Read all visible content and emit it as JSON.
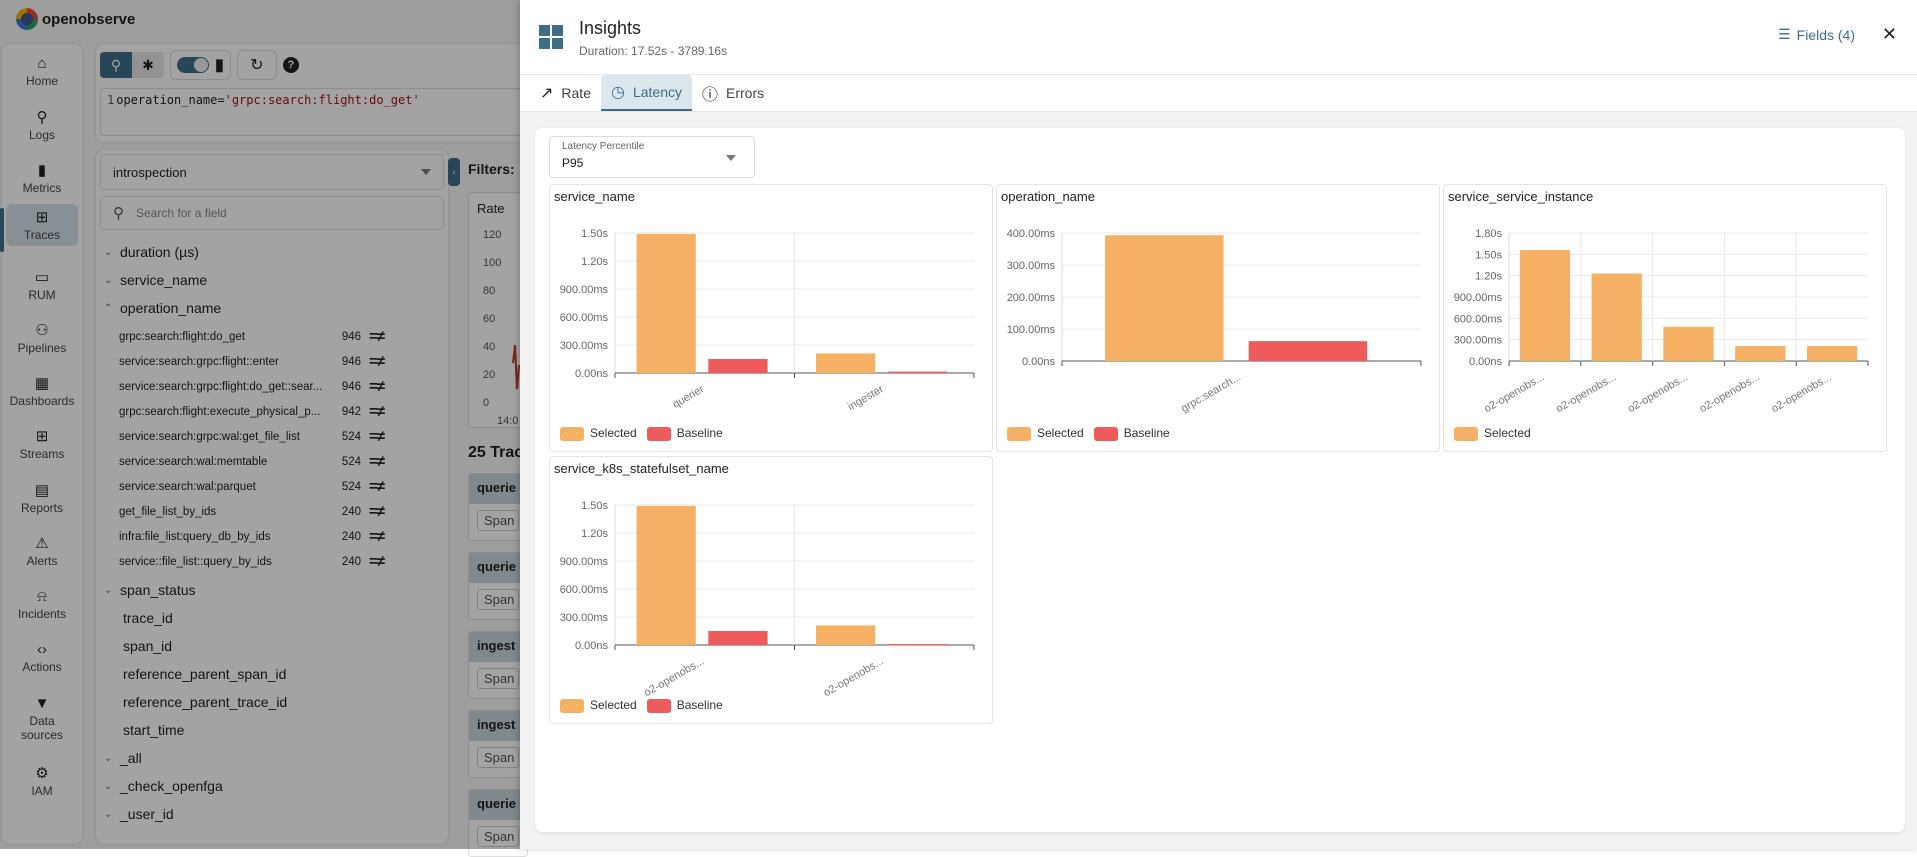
{
  "app": {
    "brand": "openobserve"
  },
  "nav": {
    "items": [
      {
        "label": "Home",
        "icon": "home-icon",
        "glyph": "⌂"
      },
      {
        "label": "Logs",
        "icon": "search-icon",
        "glyph": "⚲"
      },
      {
        "label": "Metrics",
        "icon": "bar-chart-icon",
        "glyph": "▮"
      },
      {
        "label": "Traces",
        "icon": "traces-icon",
        "glyph": "⊞",
        "active": true
      },
      {
        "label": "RUM",
        "icon": "devices-icon",
        "glyph": "▭"
      },
      {
        "label": "Pipelines",
        "icon": "pipeline-icon",
        "glyph": "⚇"
      },
      {
        "label": "Dashboards",
        "icon": "dashboard-icon",
        "glyph": "▦"
      },
      {
        "label": "Streams",
        "icon": "streams-icon",
        "glyph": "⊞"
      },
      {
        "label": "Reports",
        "icon": "report-icon",
        "glyph": "▤"
      },
      {
        "label": "Alerts",
        "icon": "alert-icon",
        "glyph": "⚠"
      },
      {
        "label": "Incidents",
        "icon": "bell-icon",
        "glyph": "⍾"
      },
      {
        "label": "Actions",
        "icon": "code-icon",
        "glyph": "‹›"
      },
      {
        "label": "Data sources",
        "icon": "filter-icon",
        "glyph": "▼"
      },
      {
        "label": "IAM",
        "icon": "user-gear-icon",
        "glyph": "⚙"
      }
    ]
  },
  "query": {
    "line_number": "1",
    "key": "operation_name=",
    "value": "'grpc:search:flight:do_get'"
  },
  "fields_panel": {
    "stream": "introspection",
    "search_placeholder": "Search for a field",
    "fields": [
      {
        "name": "duration (µs)",
        "expanded": false
      },
      {
        "name": "service_name",
        "expanded": false
      },
      {
        "name": "operation_name",
        "expanded": true
      }
    ],
    "operation_values": [
      {
        "name": "grpc:search:flight:do_get",
        "count": "946"
      },
      {
        "name": "service:search:grpc:flight::enter",
        "count": "946"
      },
      {
        "name": "service:search:grpc:flight:do_get::sear...",
        "count": "946"
      },
      {
        "name": "grpc:search:flight:execute_physical_p...",
        "count": "942"
      },
      {
        "name": "service:search:grpc:wal:get_file_list",
        "count": "524"
      },
      {
        "name": "service:search:wal:memtable",
        "count": "524"
      },
      {
        "name": "service:search:wal:parquet",
        "count": "524"
      },
      {
        "name": "get_file_list_by_ids",
        "count": "240"
      },
      {
        "name": "infra:file_list:query_db_by_ids",
        "count": "240"
      },
      {
        "name": "service::file_list::query_by_ids",
        "count": "240"
      }
    ],
    "ops_label": "=≠",
    "span_status": "span_status",
    "plain_fields": [
      "trace_id",
      "span_id",
      "reference_parent_span_id",
      "reference_parent_trace_id",
      "start_time"
    ],
    "more_fields": [
      "_all",
      "_check_openfga",
      "_user_id"
    ]
  },
  "filters_label": "Filters:",
  "rate_card": {
    "title": "Rate",
    "yticks": [
      "120",
      "100",
      "80",
      "60",
      "40",
      "20",
      "0"
    ],
    "xtick": "14:0"
  },
  "traces": {
    "header": "25 Trac",
    "cards": [
      {
        "service": "querie",
        "span": "Span"
      },
      {
        "service": "querie",
        "span": "Span"
      },
      {
        "service": "ingest",
        "span": "Span"
      },
      {
        "service": "ingest",
        "span": "Span"
      },
      {
        "service": "querie",
        "span": "Span"
      }
    ]
  },
  "insights": {
    "title": "Insights",
    "duration": "Duration: 17.52s - 3789.16s",
    "fields_button": "Fields (4)",
    "close": "✕",
    "tabs": [
      {
        "label": "Rate",
        "icon": "trend-up-icon",
        "glyph": "↗"
      },
      {
        "label": "Latency",
        "icon": "clock-icon",
        "glyph": "◷",
        "active": true
      },
      {
        "label": "Errors",
        "icon": "error-icon",
        "glyph": "ⓘ"
      }
    ],
    "percentile": {
      "label": "Latency Percentile",
      "value": "P95"
    },
    "colors": {
      "selected": "#f5b063",
      "baseline": "#ef5a5a"
    }
  },
  "chart_data": [
    {
      "type": "bar",
      "title": "service_name",
      "categories": [
        "querier",
        "ingester"
      ],
      "series": [
        {
          "name": "Selected",
          "values": [
            1490,
            210
          ]
        },
        {
          "name": "Baseline",
          "values": [
            150,
            15
          ]
        }
      ],
      "yticks": [
        "0.00ns",
        "300.00ms",
        "600.00ms",
        "900.00ms",
        "1.20s",
        "1.50s"
      ],
      "ylabel": "ms",
      "ylim": [
        0,
        1500
      ],
      "grid": true,
      "legend": "bottom-left"
    },
    {
      "type": "bar",
      "title": "operation_name",
      "categories": [
        "grpc:search..."
      ],
      "series": [
        {
          "name": "Selected",
          "values": [
            393
          ]
        },
        {
          "name": "Baseline",
          "values": [
            62
          ]
        }
      ],
      "yticks": [
        "0.00ns",
        "100.00ms",
        "200.00ms",
        "300.00ms",
        "400.00ms"
      ],
      "ylabel": "ms",
      "ylim": [
        0,
        400
      ],
      "grid": true,
      "legend": "bottom-left"
    },
    {
      "type": "bar",
      "title": "service_service_instance",
      "categories": [
        "o2-openobs...",
        "o2-openobs...",
        "o2-openobs...",
        "o2-openobs...",
        "o2-openobs..."
      ],
      "series": [
        {
          "name": "Selected",
          "values": [
            1560,
            1230,
            480,
            210,
            210
          ]
        }
      ],
      "yticks": [
        "0.00ns",
        "300.00ms",
        "600.00ms",
        "900.00ms",
        "1.20s",
        "1.50s",
        "1.80s"
      ],
      "ylabel": "ms",
      "ylim": [
        0,
        1800
      ],
      "grid": true,
      "legend": "bottom-left"
    },
    {
      "type": "bar",
      "title": "service_k8s_statefulset_name",
      "categories": [
        "o2-openobs...",
        "o2-openobs..."
      ],
      "series": [
        {
          "name": "Selected",
          "values": [
            1490,
            210
          ]
        },
        {
          "name": "Baseline",
          "values": [
            150,
            10
          ]
        }
      ],
      "yticks": [
        "0.00ns",
        "300.00ms",
        "600.00ms",
        "900.00ms",
        "1.20s",
        "1.50s"
      ],
      "ylabel": "ms",
      "ylim": [
        0,
        1500
      ],
      "grid": true,
      "legend": "bottom-left"
    }
  ]
}
